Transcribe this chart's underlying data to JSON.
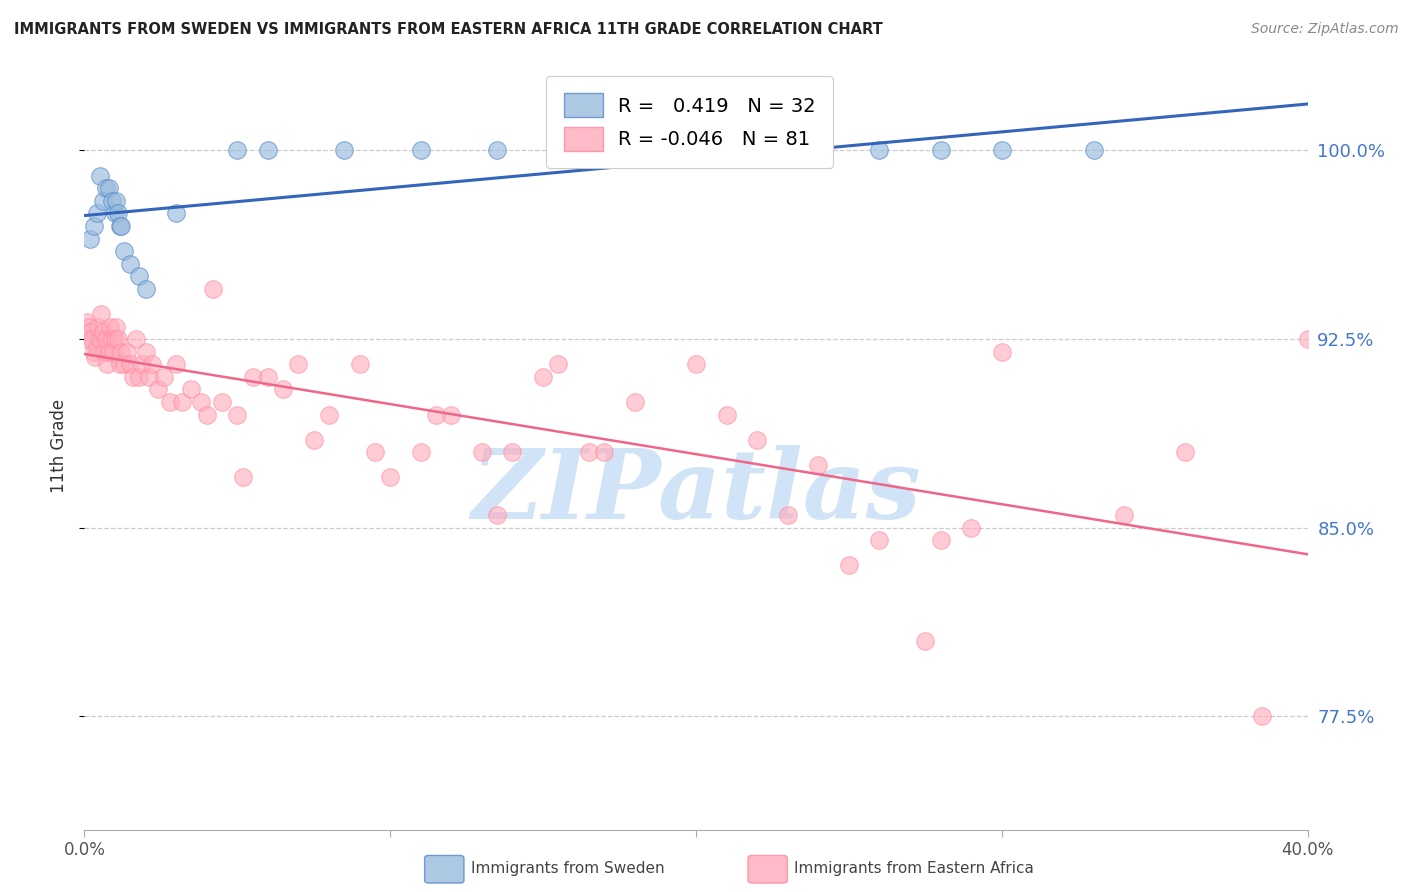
{
  "title": "IMMIGRANTS FROM SWEDEN VS IMMIGRANTS FROM EASTERN AFRICA 11TH GRADE CORRELATION CHART",
  "source": "Source: ZipAtlas.com",
  "ylabel": "11th Grade",
  "yticks": [
    77.5,
    85.0,
    92.5,
    100.0
  ],
  "ytick_labels": [
    "77.5%",
    "85.0%",
    "92.5%",
    "100.0%"
  ],
  "xlim": [
    0.0,
    40.0
  ],
  "ylim": [
    73.0,
    103.5
  ],
  "sweden_color": "#99BBDD",
  "eastern_africa_color": "#FFAABB",
  "sweden_edge_color": "#5588CC",
  "eastern_africa_edge_color": "#FF8899",
  "sweden_line_color": "#3366BB",
  "eastern_africa_line_color": "#EE6688",
  "sweden_R": 0.419,
  "sweden_N": 32,
  "eastern_africa_R": -0.046,
  "eastern_africa_N": 81,
  "watermark_text": "ZIPatlas",
  "watermark_color": "#DDEEFF",
  "legend_label_sweden": "Immigrants from Sweden",
  "legend_label_eastern": "Immigrants from Eastern Africa",
  "grid_color": "#CCCCCC",
  "title_color": "#222222",
  "source_color": "#888888",
  "ytick_color": "#4477CC",
  "xtick_color": "#555555",
  "sweden_x": [
    0.2,
    0.3,
    0.4,
    0.5,
    0.6,
    0.7,
    0.8,
    0.9,
    1.0,
    1.05,
    1.1,
    1.15,
    1.2,
    1.3,
    1.5,
    1.8,
    2.0,
    3.0,
    5.0,
    6.0,
    8.5,
    11.0,
    13.5,
    16.0,
    19.0,
    21.0,
    22.0,
    24.0,
    26.0,
    28.0,
    30.0,
    33.0
  ],
  "sweden_y": [
    96.5,
    97.0,
    97.5,
    99.0,
    98.0,
    98.5,
    98.5,
    98.0,
    97.5,
    98.0,
    97.5,
    97.0,
    97.0,
    96.0,
    95.5,
    95.0,
    94.5,
    97.5,
    100.0,
    100.0,
    100.0,
    100.0,
    100.0,
    100.0,
    100.0,
    100.0,
    100.0,
    100.0,
    100.0,
    100.0,
    100.0,
    100.0
  ],
  "eastern_africa_x": [
    0.05,
    0.1,
    0.15,
    0.2,
    0.25,
    0.3,
    0.35,
    0.4,
    0.45,
    0.5,
    0.55,
    0.6,
    0.65,
    0.7,
    0.75,
    0.8,
    0.85,
    0.9,
    0.95,
    1.0,
    1.05,
    1.1,
    1.15,
    1.2,
    1.3,
    1.4,
    1.5,
    1.6,
    1.7,
    1.8,
    1.9,
    2.0,
    2.1,
    2.2,
    2.4,
    2.6,
    2.8,
    3.0,
    3.2,
    3.5,
    3.8,
    4.0,
    4.5,
    5.0,
    5.5,
    6.0,
    7.0,
    7.5,
    8.0,
    9.0,
    10.0,
    11.0,
    12.0,
    13.0,
    14.0,
    15.0,
    16.5,
    18.0,
    20.0,
    22.0,
    23.0,
    24.0,
    26.0,
    28.0,
    29.0,
    30.0,
    4.2,
    5.2,
    6.5,
    9.5,
    11.5,
    13.5,
    15.5,
    17.0,
    21.0,
    25.0,
    27.5,
    34.0,
    36.0,
    38.5,
    40.0
  ],
  "eastern_africa_y": [
    92.5,
    93.2,
    93.0,
    92.8,
    92.5,
    92.0,
    91.8,
    92.2,
    93.0,
    92.5,
    93.5,
    92.8,
    92.0,
    92.5,
    91.5,
    92.0,
    93.0,
    92.5,
    92.0,
    92.5,
    93.0,
    92.5,
    91.5,
    92.0,
    91.5,
    92.0,
    91.5,
    91.0,
    92.5,
    91.0,
    91.5,
    92.0,
    91.0,
    91.5,
    90.5,
    91.0,
    90.0,
    91.5,
    90.0,
    90.5,
    90.0,
    89.5,
    90.0,
    89.5,
    91.0,
    91.0,
    91.5,
    88.5,
    89.5,
    91.5,
    87.0,
    88.0,
    89.5,
    88.0,
    88.0,
    91.0,
    88.0,
    90.0,
    91.5,
    88.5,
    85.5,
    87.5,
    84.5,
    84.5,
    85.0,
    92.0,
    94.5,
    87.0,
    90.5,
    88.0,
    89.5,
    85.5,
    91.5,
    88.0,
    89.5,
    83.5,
    80.5,
    85.5,
    88.0,
    77.5,
    92.5
  ]
}
